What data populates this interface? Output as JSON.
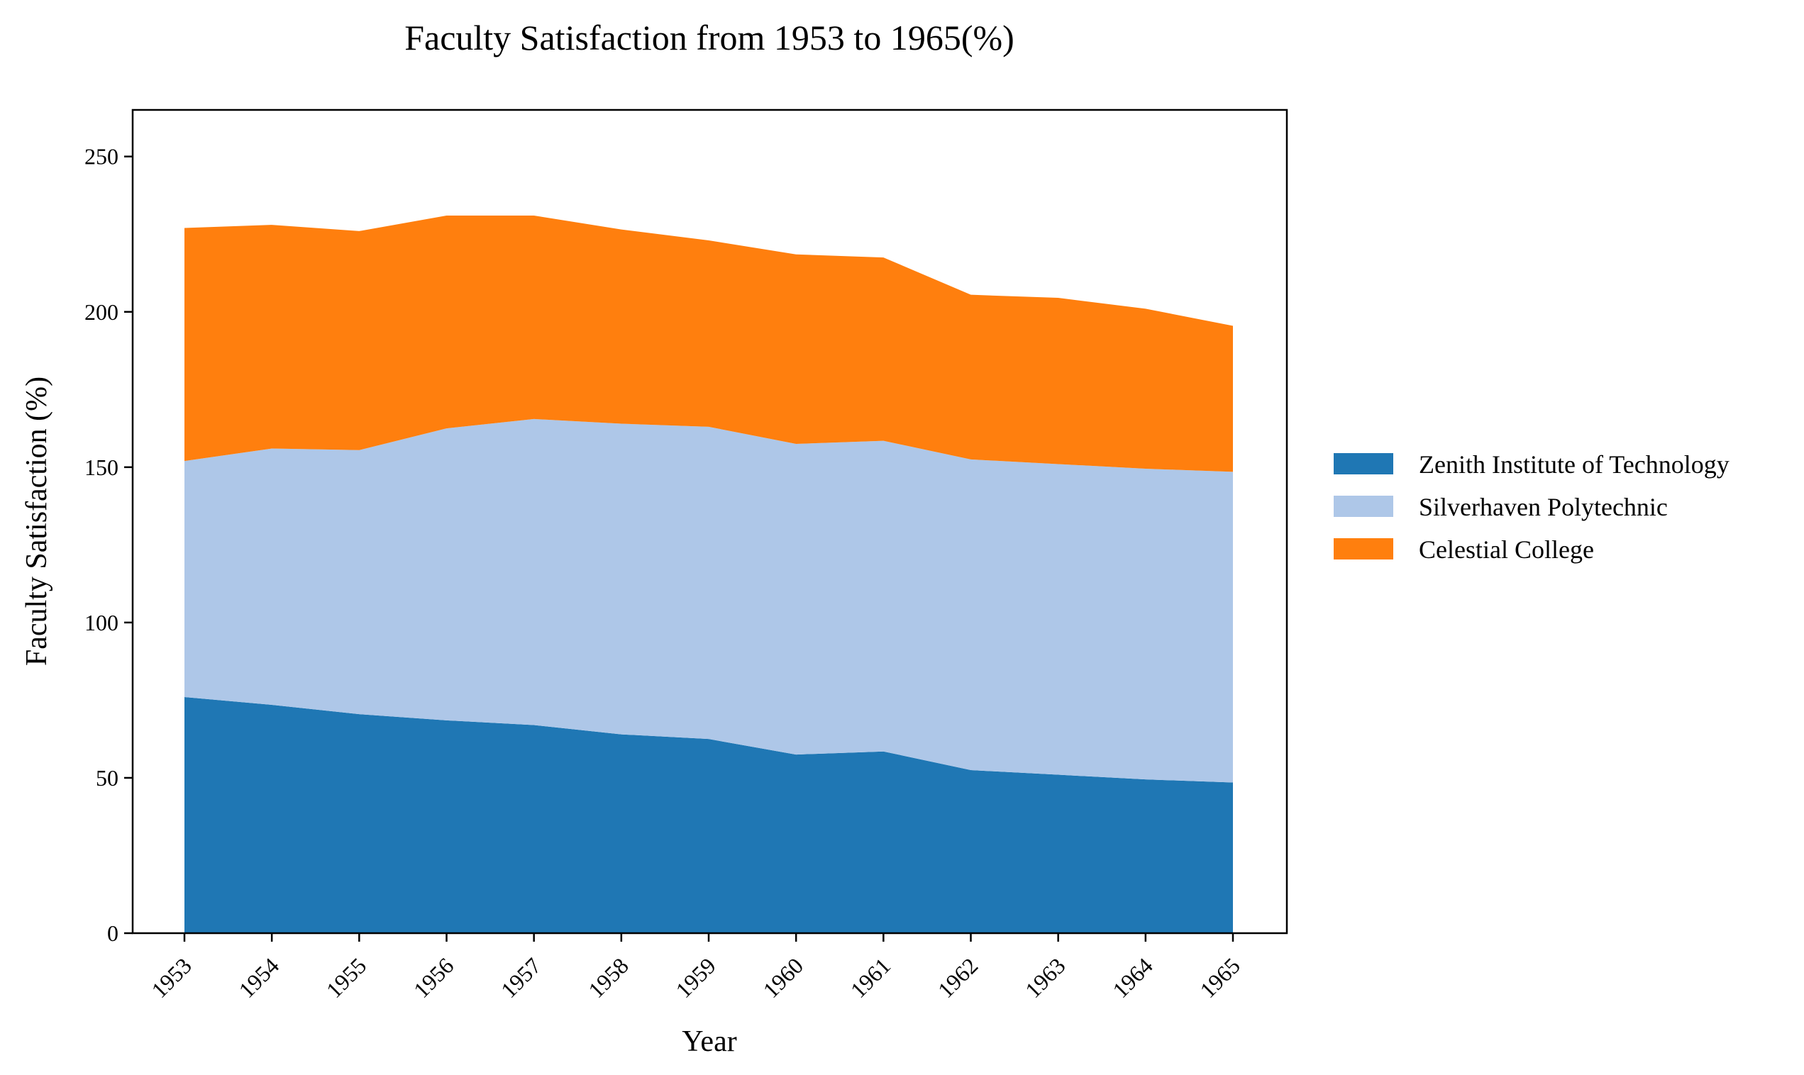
{
  "chart_data": {
    "type": "area",
    "stacked": true,
    "title": "Faculty Satisfaction from 1953 to 1965(%)",
    "xlabel": "Year",
    "ylabel": "Faculty Satisfaction (%)",
    "x": [
      "1953",
      "1954",
      "1955",
      "1956",
      "1957",
      "1958",
      "1959",
      "1960",
      "1961",
      "1962",
      "1963",
      "1964",
      "1965"
    ],
    "ylim": [
      0,
      265
    ],
    "yticks": [
      0,
      50,
      100,
      150,
      200,
      250
    ],
    "grid": false,
    "legend_position": "right",
    "series": [
      {
        "name": "Zenith Institute of Technology",
        "color": "#1f77b4",
        "values": [
          76,
          73.5,
          70.5,
          68.5,
          67,
          64,
          62.5,
          57.5,
          58.5,
          52.5,
          51,
          49.5,
          48.5
        ]
      },
      {
        "name": "Silverhaven Polytechnic",
        "color": "#aec7e8",
        "values": [
          76,
          82.5,
          85,
          94,
          98.5,
          100,
          100.5,
          100,
          100,
          100,
          100,
          100,
          100
        ]
      },
      {
        "name": "Celestial College",
        "color": "#ff7f0e",
        "values": [
          75,
          72,
          70.5,
          68.5,
          65.5,
          62.5,
          60,
          61,
          59,
          53,
          53.5,
          51.5,
          47
        ]
      }
    ]
  }
}
